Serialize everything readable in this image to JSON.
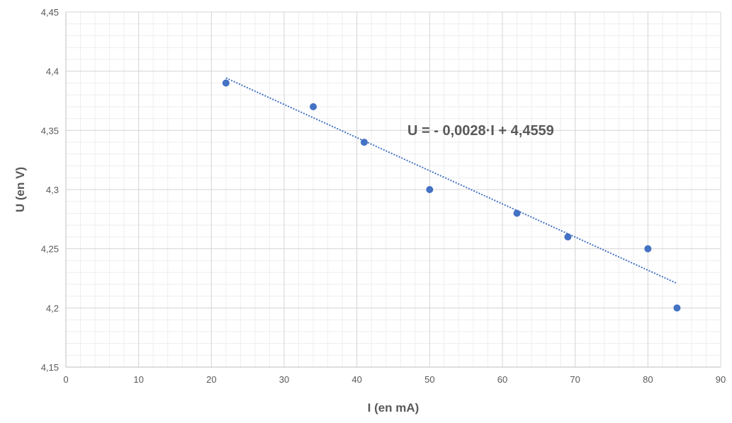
{
  "chart_data": {
    "type": "scatter",
    "xlabel": "I (en mA)",
    "ylabel": "U (en V)",
    "xlim": [
      0,
      90
    ],
    "ylim": [
      4.15,
      4.45
    ],
    "x_ticks": [
      0,
      10,
      20,
      30,
      40,
      50,
      60,
      70,
      80,
      90
    ],
    "y_ticks": [
      4.15,
      4.2,
      4.25,
      4.3,
      4.35,
      4.4,
      4.45
    ],
    "x_tick_labels": [
      "0",
      "10",
      "20",
      "30",
      "40",
      "50",
      "60",
      "70",
      "80",
      "90"
    ],
    "y_tick_labels": [
      "4,15",
      "4,2",
      "4,25",
      "4,3",
      "4,35",
      "4,4",
      "4,45"
    ],
    "grid": true,
    "minor_grid": true,
    "series": [
      {
        "x": [
          22,
          34,
          41,
          50,
          62,
          69,
          80,
          84
        ],
        "y": [
          4.39,
          4.37,
          4.34,
          4.3,
          4.28,
          4.26,
          4.25,
          4.2
        ],
        "color": "#4472c4"
      }
    ],
    "trendline": {
      "type": "linear",
      "slope": -0.0028,
      "intercept": 4.4559,
      "x_range": [
        22,
        84
      ],
      "style": "dotted",
      "color": "#4472c4"
    },
    "annotation": "U = - 0,0028·I + 4,4559"
  }
}
